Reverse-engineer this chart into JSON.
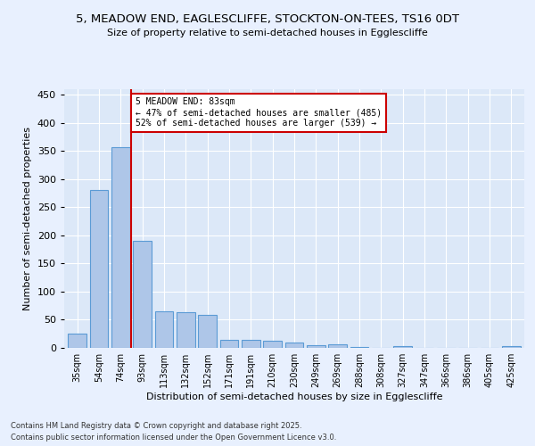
{
  "title": "5, MEADOW END, EAGLESCLIFFE, STOCKTON-ON-TEES, TS16 0DT",
  "subtitle": "Size of property relative to semi-detached houses in Egglescliffe",
  "xlabel": "Distribution of semi-detached houses by size in Egglescliffe",
  "ylabel": "Number of semi-detached properties",
  "bin_labels": [
    "35sqm",
    "54sqm",
    "74sqm",
    "93sqm",
    "113sqm",
    "132sqm",
    "152sqm",
    "171sqm",
    "191sqm",
    "210sqm",
    "230sqm",
    "249sqm",
    "269sqm",
    "288sqm",
    "308sqm",
    "327sqm",
    "347sqm",
    "366sqm",
    "386sqm",
    "405sqm",
    "425sqm"
  ],
  "bar_values": [
    25,
    280,
    357,
    190,
    65,
    63,
    59,
    14,
    14,
    13,
    10,
    5,
    6,
    2,
    0,
    3,
    0,
    0,
    0,
    0,
    3
  ],
  "bar_color": "#aec6e8",
  "bar_edge_color": "#5b9bd5",
  "property_label": "5 MEADOW END: 83sqm",
  "pct_smaller": 47,
  "count_smaller": 485,
  "pct_larger": 52,
  "count_larger": 539,
  "vline_bin_index": 2.5,
  "vline_color": "#cc0000",
  "annotation_box_color": "#cc0000",
  "ylim": [
    0,
    460
  ],
  "yticks": [
    0,
    50,
    100,
    150,
    200,
    250,
    300,
    350,
    400,
    450
  ],
  "bg_color": "#e8f0fe",
  "plot_bg_color": "#dce8f8",
  "footer1": "Contains HM Land Registry data © Crown copyright and database right 2025.",
  "footer2": "Contains public sector information licensed under the Open Government Licence v3.0."
}
